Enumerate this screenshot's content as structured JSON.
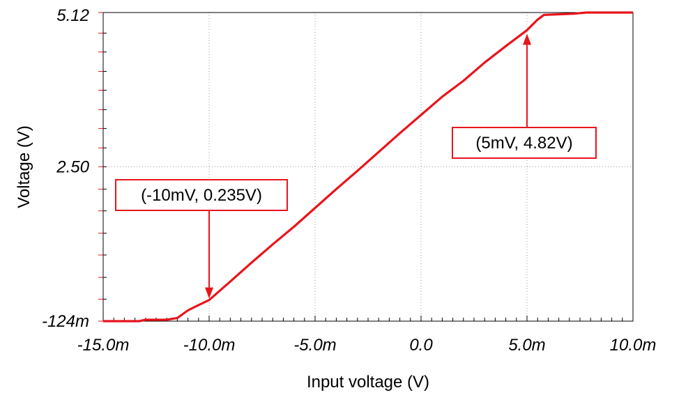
{
  "chart_data": {
    "type": "line",
    "xlabel": "Input voltage (V)",
    "ylabel": "Voltage (V)",
    "xlim": [
      -0.015,
      0.01
    ],
    "ylim": [
      -0.124,
      5.12
    ],
    "x_ticks": [
      {
        "value": -0.015,
        "label": "-15.0m"
      },
      {
        "value": -0.01,
        "label": "-10.0m"
      },
      {
        "value": -0.005,
        "label": "-5.0m"
      },
      {
        "value": 0.0,
        "label": "0.0"
      },
      {
        "value": 0.005,
        "label": "5.0m"
      },
      {
        "value": 0.01,
        "label": "10.0m"
      }
    ],
    "y_ticks": [
      {
        "value": -0.124,
        "label": "-124m"
      },
      {
        "value": 2.5,
        "label": "2.50"
      },
      {
        "value": 5.12,
        "label": "5.12"
      }
    ],
    "grid": true,
    "line_color": "#e8141c",
    "series": [
      {
        "x": [
          -0.015,
          -0.0133,
          -0.013,
          -0.012,
          -0.0115,
          -0.011,
          -0.0105,
          -0.01,
          -0.009,
          -0.008,
          -0.007,
          -0.006,
          -0.005,
          -0.004,
          -0.003,
          -0.002,
          -0.001,
          0.0,
          0.001,
          0.002,
          0.003,
          0.004,
          0.005,
          0.0055,
          0.0058,
          0.0065,
          0.0072,
          0.0078,
          0.01
        ],
        "y": [
          -0.124,
          -0.124,
          -0.1,
          -0.1,
          -0.07,
          0.06,
          0.15,
          0.235,
          0.55,
          0.87,
          1.18,
          1.48,
          1.8,
          2.12,
          2.43,
          2.75,
          3.07,
          3.38,
          3.69,
          3.96,
          4.27,
          4.55,
          4.82,
          5.0,
          5.08,
          5.09,
          5.1,
          5.12,
          5.12
        ]
      }
    ],
    "annotations": [
      {
        "text": "(-10mV, 0.235V)",
        "x": -0.01,
        "y": 0.235,
        "direction": "down"
      },
      {
        "text": "(5mV, 4.82V)",
        "x": 0.005,
        "y": 4.82,
        "direction": "up"
      }
    ]
  }
}
